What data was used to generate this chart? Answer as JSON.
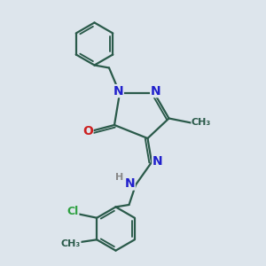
{
  "bg_color": "#dde5ec",
  "bond_color": "#2a5a4a",
  "n_color": "#2020cc",
  "o_color": "#cc2020",
  "cl_color": "#2da040",
  "h_color": "#888888",
  "line_width": 1.6,
  "font_size": 9,
  "fig_size": [
    3.0,
    3.0
  ],
  "dpi": 100,
  "xlim": [
    0,
    10
  ],
  "ylim": [
    0,
    10
  ]
}
